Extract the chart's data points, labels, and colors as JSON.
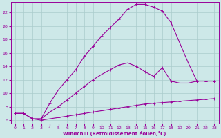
{
  "xlabel": "Windchill (Refroidissement éolien,°C)",
  "bg_color": "#cde8e8",
  "line_color": "#990099",
  "grid_color": "#aacccc",
  "xlim": [
    -0.5,
    23.5
  ],
  "ylim": [
    5.5,
    23.5
  ],
  "yticks": [
    6,
    8,
    10,
    12,
    14,
    16,
    18,
    20,
    22
  ],
  "xticks": [
    0,
    1,
    2,
    3,
    4,
    5,
    6,
    7,
    8,
    9,
    10,
    11,
    12,
    13,
    14,
    15,
    16,
    17,
    18,
    19,
    20,
    21,
    22,
    23
  ],
  "line1_x": [
    0,
    1,
    2,
    3,
    4,
    5,
    6,
    7,
    8,
    9,
    10,
    11,
    12,
    13,
    14,
    15,
    16,
    17,
    18,
    19,
    20,
    21,
    22,
    23
  ],
  "line1_y": [
    7.0,
    7.0,
    6.2,
    6.0,
    6.2,
    6.4,
    6.6,
    6.8,
    7.0,
    7.2,
    7.4,
    7.6,
    7.8,
    8.0,
    8.2,
    8.4,
    8.5,
    8.6,
    8.7,
    8.8,
    8.9,
    9.0,
    9.1,
    9.2
  ],
  "line2_x": [
    0,
    1,
    2,
    3,
    4,
    5,
    6,
    7,
    8,
    9,
    10,
    11,
    12,
    13,
    14,
    15,
    16,
    17,
    18,
    19,
    20,
    21,
    22,
    23
  ],
  "line2_y": [
    7.0,
    7.0,
    6.2,
    6.2,
    7.2,
    8.0,
    9.0,
    10.0,
    11.0,
    12.0,
    12.8,
    13.5,
    14.2,
    14.5,
    14.0,
    13.2,
    12.5,
    13.8,
    11.8,
    11.5,
    11.5,
    11.8,
    11.8,
    11.8
  ],
  "line3_x": [
    0,
    1,
    2,
    3,
    4,
    5,
    6,
    7,
    8,
    9,
    10,
    11,
    12,
    13,
    14,
    15,
    16,
    17,
    18,
    19,
    20,
    21,
    22,
    23
  ],
  "line3_y": [
    7.0,
    7.0,
    6.2,
    6.2,
    8.5,
    10.5,
    12.0,
    13.5,
    15.5,
    17.0,
    18.5,
    19.8,
    21.0,
    22.5,
    23.2,
    23.2,
    22.8,
    22.2,
    20.5,
    17.5,
    14.5,
    11.8,
    11.8,
    11.8
  ]
}
